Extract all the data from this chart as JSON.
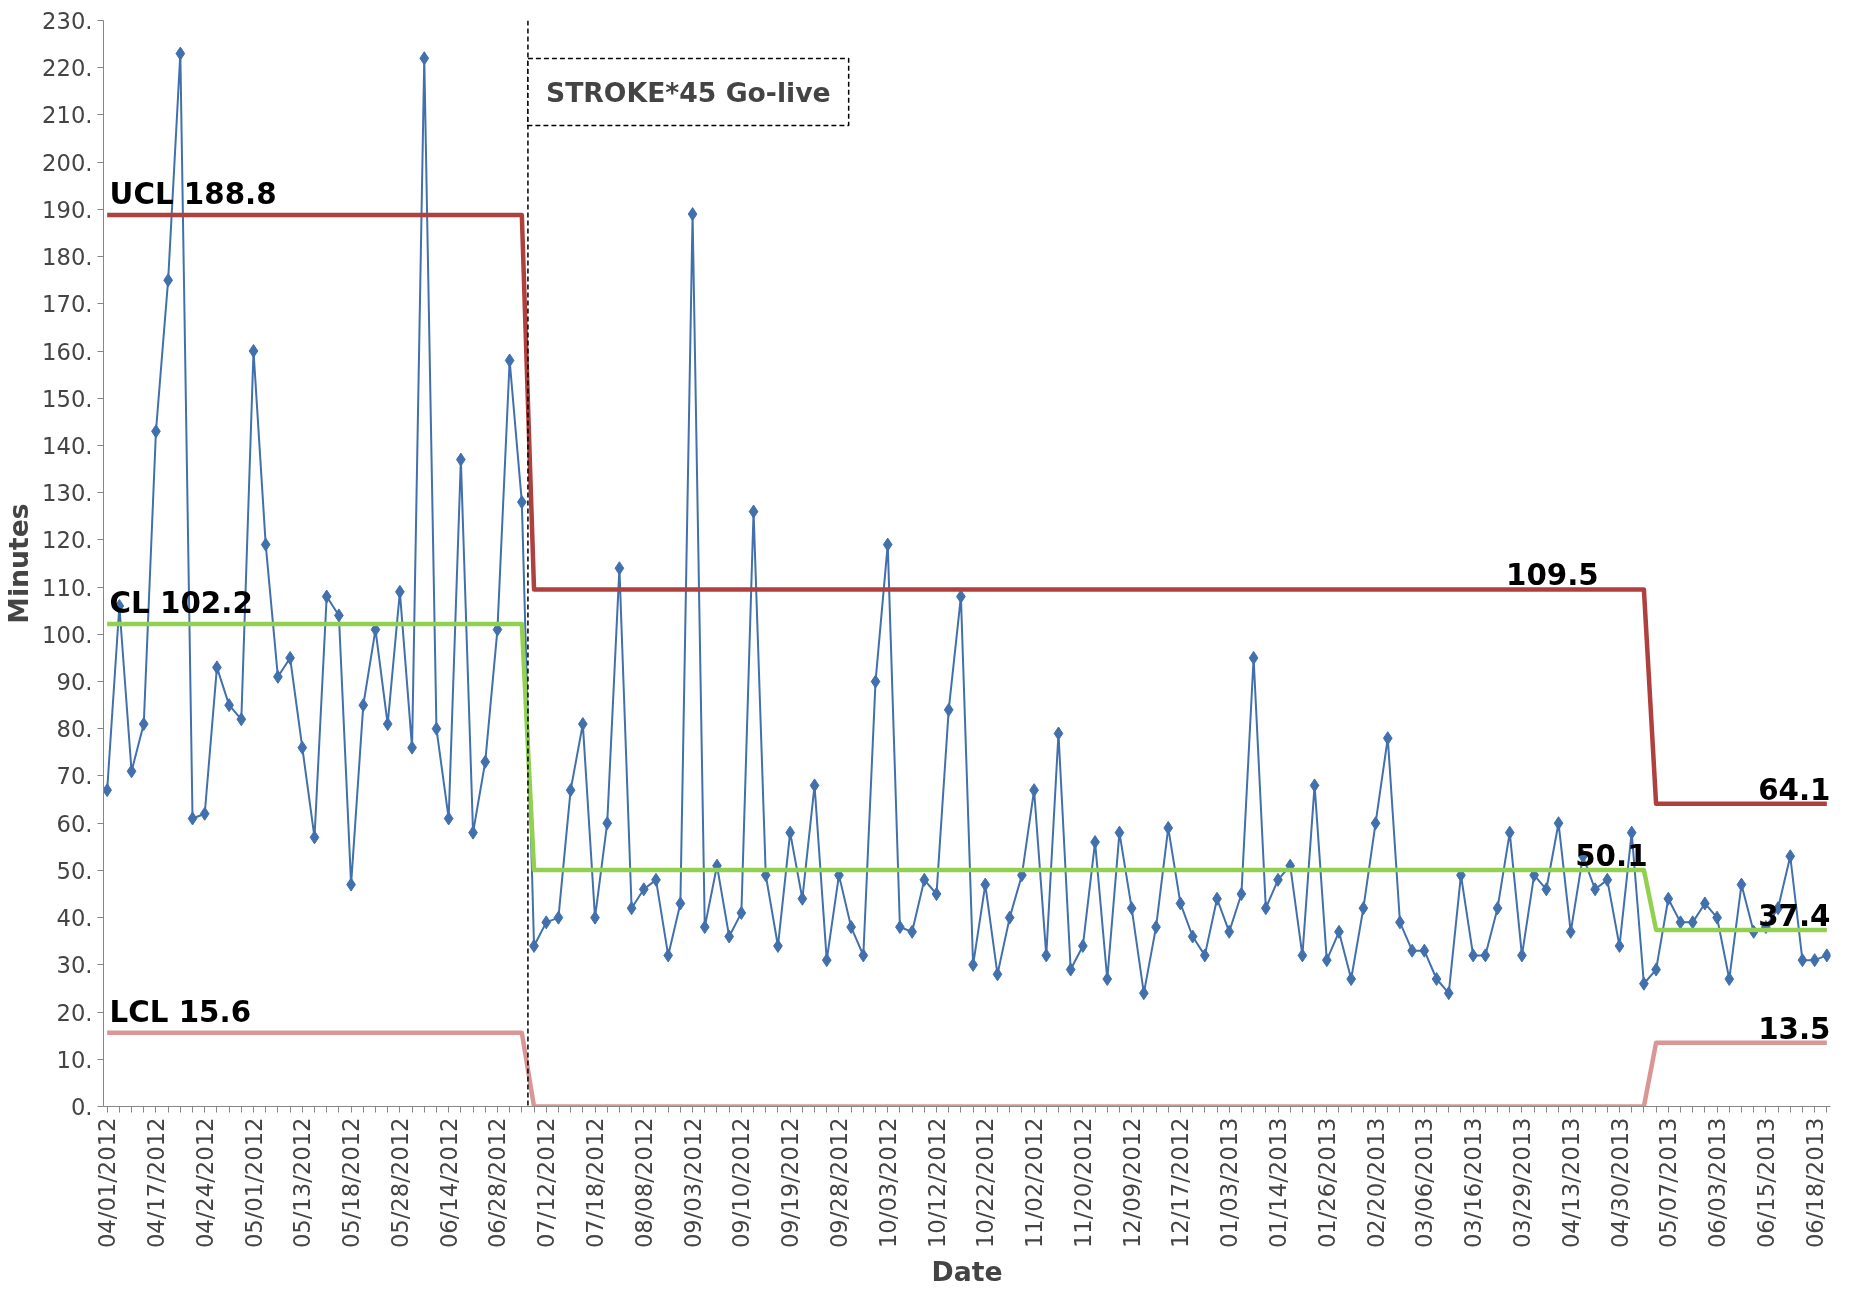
{
  "chart_data": {
    "type": "line",
    "xlabel": "Date",
    "ylabel": "Minutes",
    "categories": [
      "04/01/2012",
      null,
      null,
      null,
      "04/17/2012",
      null,
      null,
      null,
      "04/24/2012",
      null,
      null,
      null,
      "05/01/2012",
      null,
      null,
      null,
      "05/13/2012",
      null,
      null,
      null,
      "05/18/2012",
      null,
      null,
      null,
      "05/28/2012",
      null,
      null,
      null,
      "06/14/2012",
      null,
      null,
      null,
      "06/28/2012",
      null,
      null,
      null,
      "07/12/2012",
      null,
      null,
      null,
      "07/18/2012",
      null,
      null,
      null,
      "08/08/2012",
      null,
      null,
      null,
      "09/03/2012",
      null,
      null,
      null,
      "09/10/2012",
      null,
      null,
      null,
      "09/19/2012",
      null,
      null,
      null,
      "09/28/2012",
      null,
      null,
      null,
      "10/03/2012",
      null,
      null,
      null,
      "10/12/2012",
      null,
      null,
      null,
      "10/22/2012",
      null,
      null,
      null,
      "11/02/2012",
      null,
      null,
      null,
      "11/20/2012",
      null,
      null,
      null,
      "12/09/2012",
      null,
      null,
      null,
      "12/17/2012",
      null,
      null,
      null,
      "01/03/2013",
      null,
      null,
      null,
      "01/14/2013",
      null,
      null,
      null,
      "01/26/2013",
      null,
      null,
      null,
      "02/20/2013",
      null,
      null,
      null,
      "03/06/2013",
      null,
      null,
      null,
      "03/16/2013",
      null,
      null,
      null,
      "03/29/2013",
      null,
      null,
      null,
      "04/13/2013",
      null,
      null,
      null,
      "04/30/2013",
      null,
      null,
      null,
      "05/07/2013",
      null,
      null,
      null,
      "06/03/2013",
      null,
      null,
      null,
      "06/15/2013",
      null,
      null,
      null,
      "06/18/2013",
      null
    ],
    "series": [
      {
        "color": "#4170ad",
        "marker": "diamond",
        "values": [
          67,
          106,
          71,
          81,
          143,
          175,
          223,
          61,
          62,
          93,
          85,
          82,
          160,
          119,
          91,
          95,
          76,
          57,
          108,
          104,
          47,
          85,
          101,
          81,
          109,
          76,
          222,
          80,
          61,
          137,
          58,
          73,
          101,
          158,
          128,
          34,
          39,
          40,
          67,
          81,
          40,
          60,
          114,
          42,
          46,
          48,
          32,
          43,
          189,
          38,
          51,
          36,
          41,
          126,
          49,
          34,
          58,
          44,
          68,
          31,
          49,
          38,
          32,
          90,
          119,
          38,
          37,
          48,
          45,
          84,
          108,
          30,
          47,
          28,
          40,
          49,
          67,
          32,
          79,
          29,
          34,
          56,
          27,
          58,
          42,
          24,
          38,
          59,
          43,
          36,
          32,
          44,
          37,
          45,
          95,
          42,
          48,
          51,
          32,
          68,
          31,
          37,
          27,
          42,
          60,
          78,
          39,
          33,
          33,
          27,
          24,
          49,
          32,
          32,
          42,
          58,
          32,
          49,
          46,
          60,
          37,
          53,
          46,
          48,
          34,
          58,
          26,
          29,
          44,
          39,
          39,
          43,
          40,
          27,
          47,
          37,
          38,
          42,
          53,
          31,
          31,
          32
        ]
      },
      {
        "color": "#b0403d",
        "marker": "none",
        "values": [
          188.8,
          188.8,
          188.8,
          188.8,
          188.8,
          188.8,
          188.8,
          188.8,
          188.8,
          188.8,
          188.8,
          188.8,
          188.8,
          188.8,
          188.8,
          188.8,
          188.8,
          188.8,
          188.8,
          188.8,
          188.8,
          188.8,
          188.8,
          188.8,
          188.8,
          188.8,
          188.8,
          188.8,
          188.8,
          188.8,
          188.8,
          188.8,
          188.8,
          188.8,
          188.8,
          109.5,
          109.5,
          109.5,
          109.5,
          109.5,
          109.5,
          109.5,
          109.5,
          109.5,
          109.5,
          109.5,
          109.5,
          109.5,
          109.5,
          109.5,
          109.5,
          109.5,
          109.5,
          109.5,
          109.5,
          109.5,
          109.5,
          109.5,
          109.5,
          109.5,
          109.5,
          109.5,
          109.5,
          109.5,
          109.5,
          109.5,
          109.5,
          109.5,
          109.5,
          109.5,
          109.5,
          109.5,
          109.5,
          109.5,
          109.5,
          109.5,
          109.5,
          109.5,
          109.5,
          109.5,
          109.5,
          109.5,
          109.5,
          109.5,
          109.5,
          109.5,
          109.5,
          109.5,
          109.5,
          109.5,
          109.5,
          109.5,
          109.5,
          109.5,
          109.5,
          109.5,
          109.5,
          109.5,
          109.5,
          109.5,
          109.5,
          109.5,
          109.5,
          109.5,
          109.5,
          109.5,
          109.5,
          109.5,
          109.5,
          109.5,
          109.5,
          109.5,
          109.5,
          109.5,
          109.5,
          109.5,
          109.5,
          109.5,
          109.5,
          109.5,
          109.5,
          109.5,
          109.5,
          109.5,
          109.5,
          109.5,
          109.5,
          64.1,
          64.1,
          64.1,
          64.1,
          64.1,
          64.1,
          64.1,
          64.1,
          64.1,
          64.1,
          64.1,
          64.1,
          64.1,
          64.1,
          64.1
        ],
        "value_labels": [
          "UCL 188.8",
          null,
          null,
          null,
          null,
          null,
          null,
          null,
          null,
          null,
          null,
          null,
          null,
          null,
          null,
          null,
          null,
          null,
          null,
          null,
          null,
          null,
          null,
          null,
          null,
          null,
          null,
          null,
          null,
          null,
          null,
          null,
          null,
          null,
          null,
          null,
          null,
          null,
          null,
          null,
          null,
          null,
          null,
          null,
          null,
          null,
          null,
          null,
          null,
          null,
          null,
          null,
          null,
          null,
          null,
          null,
          null,
          null,
          null,
          null,
          null,
          null,
          null,
          null,
          null,
          null,
          null,
          null,
          null,
          null,
          null,
          null,
          null,
          null,
          null,
          null,
          null,
          null,
          null,
          null,
          null,
          null,
          null,
          null,
          null,
          null,
          null,
          null,
          null,
          null,
          null,
          null,
          null,
          null,
          null,
          null,
          null,
          null,
          null,
          null,
          null,
          null,
          null,
          null,
          null,
          null,
          null,
          null,
          null,
          null,
          null,
          null,
          null,
          null,
          null,
          null,
          null,
          null,
          null,
          null,
          null,
          null,
          "109.5",
          null,
          null,
          null,
          null,
          null,
          null,
          null,
          null,
          null,
          null,
          null,
          null,
          null,
          null,
          null,
          null,
          null,
          null,
          "64.1"
        ]
      },
      {
        "color": "#92d050",
        "marker": "none",
        "values": [
          102.2,
          102.2,
          102.2,
          102.2,
          102.2,
          102.2,
          102.2,
          102.2,
          102.2,
          102.2,
          102.2,
          102.2,
          102.2,
          102.2,
          102.2,
          102.2,
          102.2,
          102.2,
          102.2,
          102.2,
          102.2,
          102.2,
          102.2,
          102.2,
          102.2,
          102.2,
          102.2,
          102.2,
          102.2,
          102.2,
          102.2,
          102.2,
          102.2,
          102.2,
          102.2,
          50.1,
          50.1,
          50.1,
          50.1,
          50.1,
          50.1,
          50.1,
          50.1,
          50.1,
          50.1,
          50.1,
          50.1,
          50.1,
          50.1,
          50.1,
          50.1,
          50.1,
          50.1,
          50.1,
          50.1,
          50.1,
          50.1,
          50.1,
          50.1,
          50.1,
          50.1,
          50.1,
          50.1,
          50.1,
          50.1,
          50.1,
          50.1,
          50.1,
          50.1,
          50.1,
          50.1,
          50.1,
          50.1,
          50.1,
          50.1,
          50.1,
          50.1,
          50.1,
          50.1,
          50.1,
          50.1,
          50.1,
          50.1,
          50.1,
          50.1,
          50.1,
          50.1,
          50.1,
          50.1,
          50.1,
          50.1,
          50.1,
          50.1,
          50.1,
          50.1,
          50.1,
          50.1,
          50.1,
          50.1,
          50.1,
          50.1,
          50.1,
          50.1,
          50.1,
          50.1,
          50.1,
          50.1,
          50.1,
          50.1,
          50.1,
          50.1,
          50.1,
          50.1,
          50.1,
          50.1,
          50.1,
          50.1,
          50.1,
          50.1,
          50.1,
          50.1,
          50.1,
          50.1,
          50.1,
          50.1,
          50.1,
          50.1,
          37.4,
          37.4,
          37.4,
          37.4,
          37.4,
          37.4,
          37.4,
          37.4,
          37.4,
          37.4,
          37.4,
          37.4,
          37.4,
          37.4,
          37.4
        ],
        "value_labels": [
          "CL 102.2",
          null,
          null,
          null,
          null,
          null,
          null,
          null,
          null,
          null,
          null,
          null,
          null,
          null,
          null,
          null,
          null,
          null,
          null,
          null,
          null,
          null,
          null,
          null,
          null,
          null,
          null,
          null,
          null,
          null,
          null,
          null,
          null,
          null,
          null,
          null,
          null,
          null,
          null,
          null,
          null,
          null,
          null,
          null,
          null,
          null,
          null,
          null,
          null,
          null,
          null,
          null,
          null,
          null,
          null,
          null,
          null,
          null,
          null,
          null,
          null,
          null,
          null,
          null,
          null,
          null,
          null,
          null,
          null,
          null,
          null,
          null,
          null,
          null,
          null,
          null,
          null,
          null,
          null,
          null,
          null,
          null,
          null,
          null,
          null,
          null,
          null,
          null,
          null,
          null,
          null,
          null,
          null,
          null,
          null,
          null,
          null,
          null,
          null,
          null,
          null,
          null,
          null,
          null,
          null,
          null,
          null,
          null,
          null,
          null,
          null,
          null,
          null,
          null,
          null,
          null,
          null,
          null,
          null,
          null,
          null,
          null,
          null,
          null,
          null,
          null,
          "50.1",
          null,
          null,
          null,
          null,
          null,
          null,
          null,
          null,
          null,
          null,
          null,
          null,
          null,
          null,
          "37.4"
        ]
      },
      {
        "color": "#d99694",
        "marker": "none",
        "values": [
          15.6,
          15.6,
          15.6,
          15.6,
          15.6,
          15.6,
          15.6,
          15.6,
          15.6,
          15.6,
          15.6,
          15.6,
          15.6,
          15.6,
          15.6,
          15.6,
          15.6,
          15.6,
          15.6,
          15.6,
          15.6,
          15.6,
          15.6,
          15.6,
          15.6,
          15.6,
          15.6,
          15.6,
          15.6,
          15.6,
          15.6,
          15.6,
          15.6,
          15.6,
          15.6,
          0,
          0,
          0,
          0,
          0,
          0,
          0,
          0,
          0,
          0,
          0,
          0,
          0,
          0,
          0,
          0,
          0,
          0,
          0,
          0,
          0,
          0,
          0,
          0,
          0,
          0,
          0,
          0,
          0,
          0,
          0,
          0,
          0,
          0,
          0,
          0,
          0,
          0,
          0,
          0,
          0,
          0,
          0,
          0,
          0,
          0,
          0,
          0,
          0,
          0,
          0,
          0,
          0,
          0,
          0,
          0,
          0,
          0,
          0,
          0,
          0,
          0,
          0,
          0,
          0,
          0,
          0,
          0,
          0,
          0,
          0,
          0,
          0,
          0,
          0,
          0,
          0,
          0,
          0,
          0,
          0,
          0,
          0,
          0,
          0,
          0,
          0,
          0,
          0,
          0,
          0,
          0,
          13.5,
          13.5,
          13.5,
          13.5,
          13.5,
          13.5,
          13.5,
          13.5,
          13.5,
          13.5,
          13.5,
          13.5,
          13.5,
          13.5,
          13.5
        ],
        "value_labels": [
          "LCL 15.6",
          null,
          null,
          null,
          null,
          null,
          null,
          null,
          null,
          null,
          null,
          null,
          null,
          null,
          null,
          null,
          null,
          null,
          null,
          null,
          null,
          null,
          null,
          null,
          null,
          null,
          null,
          null,
          null,
          null,
          null,
          null,
          null,
          null,
          null,
          null,
          null,
          null,
          null,
          null,
          null,
          null,
          null,
          null,
          null,
          null,
          null,
          null,
          null,
          null,
          null,
          null,
          null,
          null,
          null,
          null,
          null,
          null,
          null,
          null,
          null,
          null,
          null,
          null,
          null,
          null,
          null,
          null,
          null,
          null,
          null,
          null,
          null,
          null,
          null,
          null,
          null,
          null,
          null,
          null,
          null,
          null,
          null,
          null,
          null,
          null,
          null,
          null,
          null,
          null,
          null,
          null,
          null,
          null,
          null,
          null,
          null,
          null,
          null,
          null,
          null,
          null,
          null,
          null,
          null,
          null,
          null,
          null,
          null,
          null,
          null,
          null,
          null,
          null,
          null,
          null,
          null,
          null,
          null,
          null,
          null,
          null,
          null,
          null,
          null,
          null,
          null,
          null,
          null,
          null,
          null,
          null,
          null,
          null,
          null,
          null,
          null,
          null,
          null,
          null,
          null,
          "13.5"
        ]
      }
    ],
    "ylim": [
      0,
      230
    ],
    "yticks": [
      {
        "value": 0,
        "label": "0."
      },
      {
        "value": 10,
        "label": "10."
      },
      {
        "value": 20,
        "label": "20."
      },
      {
        "value": 30,
        "label": "30."
      },
      {
        "value": 40,
        "label": "40."
      },
      {
        "value": 50,
        "label": "50."
      },
      {
        "value": 60,
        "label": "60."
      },
      {
        "value": 70,
        "label": "70."
      },
      {
        "value": 80,
        "label": "80."
      },
      {
        "value": 90,
        "label": "90."
      },
      {
        "value": 100,
        "label": "100."
      },
      {
        "value": 110,
        "label": "110."
      },
      {
        "value": 120,
        "label": "120."
      },
      {
        "value": 130,
        "label": "130."
      },
      {
        "value": 140,
        "label": "140."
      },
      {
        "value": 150,
        "label": "150."
      },
      {
        "value": 160,
        "label": "160."
      },
      {
        "value": 170,
        "label": "170."
      },
      {
        "value": 180,
        "label": "180."
      },
      {
        "value": 190,
        "label": "190."
      },
      {
        "value": 200,
        "label": "200."
      },
      {
        "value": 210,
        "label": "210."
      },
      {
        "value": 220,
        "label": "220."
      },
      {
        "value": 230,
        "label": "230."
      }
    ],
    "annotations": [
      "STROKE*45 Go-live"
    ],
    "grid": false
  }
}
